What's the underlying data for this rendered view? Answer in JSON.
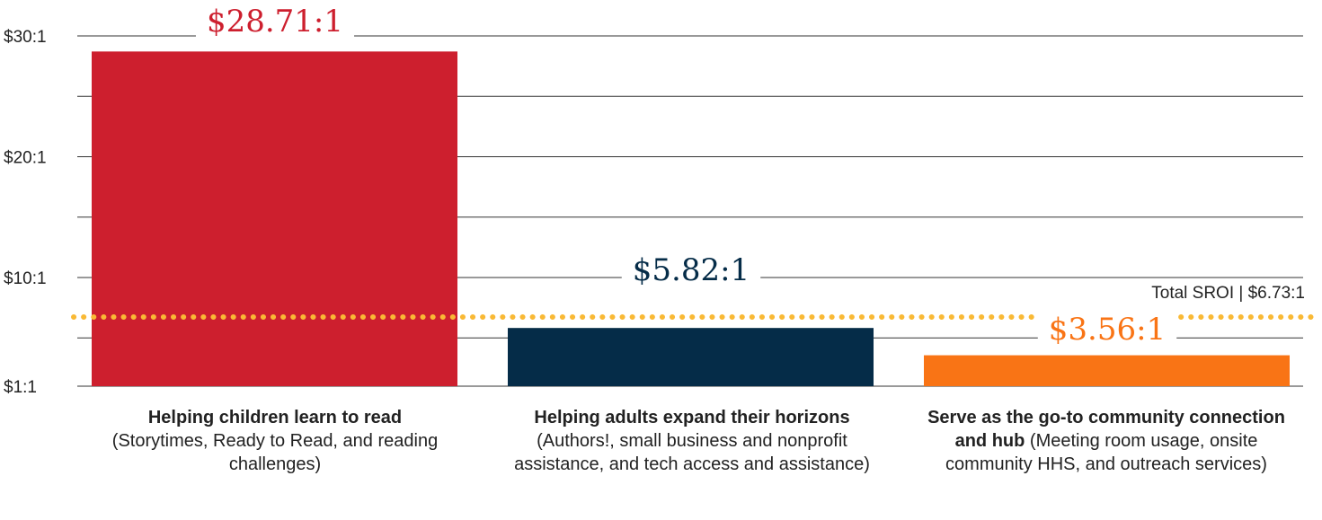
{
  "chart_data": {
    "type": "bar",
    "categories": [
      "Helping children learn to read",
      "Helping adults expand their horizons",
      "Serve as the go-to community connection and hub"
    ],
    "category_labels": [
      {
        "bold": "Helping children learn to read",
        "rest": "(Storytimes, Ready to Read, and reading challenges)"
      },
      {
        "bold": "Helping adults expand their horizons",
        "rest": "(Authors!, small business and nonprofit assistance, and tech access and assistance)"
      },
      {
        "bold": "Serve as the go-to community connection and hub",
        "rest": "(Meeting room usage, onsite community HHS, and outreach services)"
      }
    ],
    "values": [
      28.71,
      5.82,
      3.56
    ],
    "value_labels": [
      "$28.71:1",
      "$5.82:1",
      "$3.56:1"
    ],
    "colors": [
      "#cd1f2e",
      "#052c48",
      "#f97415"
    ],
    "label_colors": [
      "#cd1f2e",
      "#052c48",
      "#f97415"
    ],
    "yticks": [
      1,
      10,
      20,
      30
    ],
    "ytick_labels": [
      "$1:1",
      "$10:1",
      "$20:1",
      "$30:1"
    ],
    "ylim": [
      1,
      30
    ],
    "grid": true,
    "reference_line": {
      "value": 6.73,
      "label": "Total SROI | $6.73:1",
      "color": "#f9b935",
      "style": "dotted"
    }
  }
}
